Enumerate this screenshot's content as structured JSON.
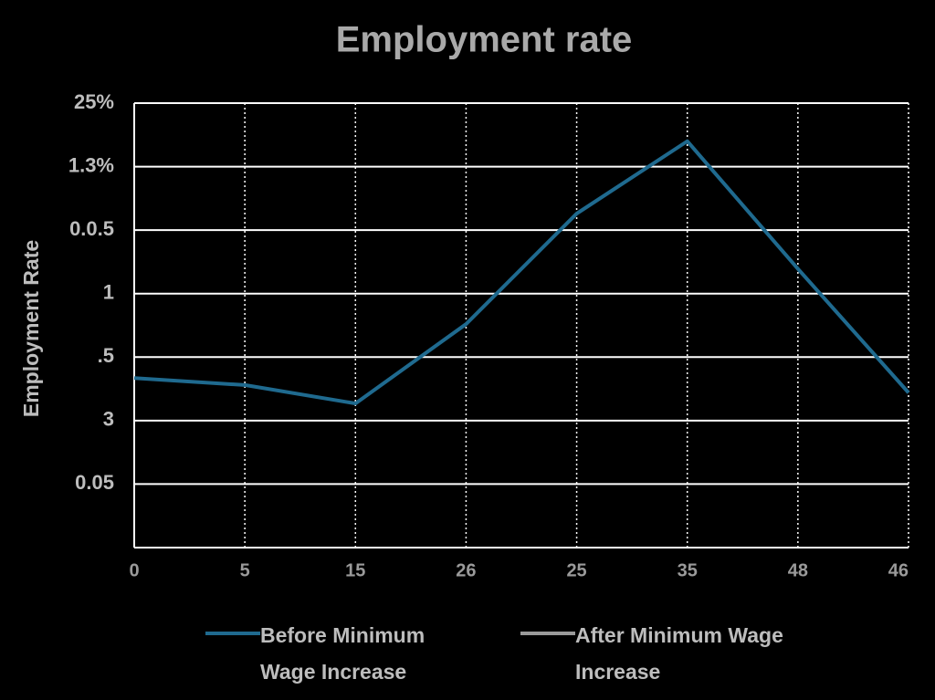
{
  "chart_data": {
    "type": "line",
    "title": "Employment rate",
    "y_label": "Employment Rate",
    "categories": [
      "0",
      "5",
      "15",
      "26",
      "25",
      "35",
      "48",
      "46"
    ],
    "series": [
      {
        "name": "Before Minimum Wage Increase",
        "color": "#1f6a8f",
        "values": [
          2.67,
          2.56,
          2.27,
          3.52,
          5.26,
          6.4,
          4.39,
          2.44
        ]
      },
      {
        "name": "After Minimum Wage Increase",
        "color": "#9a9a9a",
        "values": [
          null,
          null,
          null,
          null,
          null,
          null,
          null,
          null
        ]
      }
    ],
    "ylim": [
      0,
      7
    ],
    "yticks": [
      {
        "value": 1,
        "label": "0.05"
      },
      {
        "value": 2,
        "label": "3"
      },
      {
        "value": 3,
        "label": ".5"
      },
      {
        "value": 4,
        "label": "1"
      },
      {
        "value": 5,
        "label": "0.0.5"
      },
      {
        "value": 6,
        "label": "1.3%"
      },
      {
        "value": 7,
        "label": "25%"
      }
    ],
    "grid": true
  }
}
